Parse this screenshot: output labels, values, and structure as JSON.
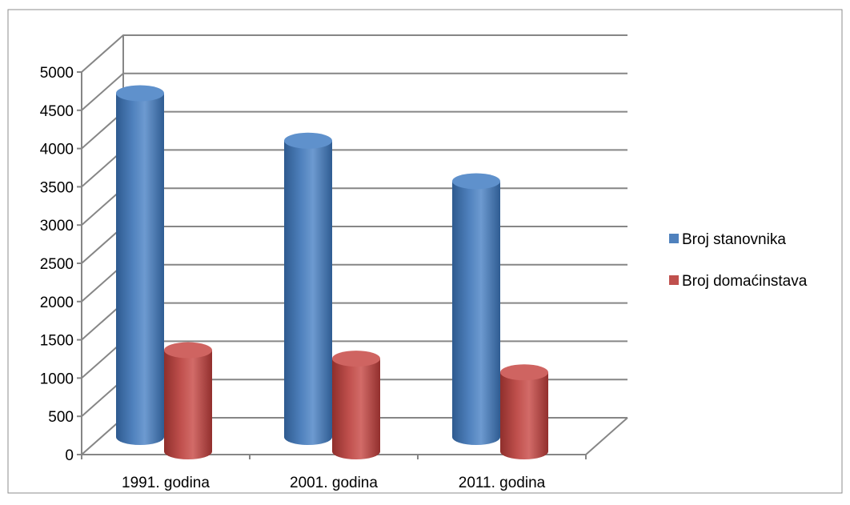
{
  "chart_data": {
    "type": "bar",
    "style": "3d-cylinder",
    "title": "",
    "xlabel": "",
    "ylabel": "",
    "categories": [
      "1991. godina",
      "2001. godina",
      "2011. godina"
    ],
    "series": [
      {
        "name": "Broj stanovnika",
        "values": [
          4660,
          4040,
          3510
        ],
        "color": "#4F81BD"
      },
      {
        "name": "Broj domaćinstava",
        "values": [
          1490,
          1380,
          1200
        ],
        "color": "#C0504D"
      }
    ],
    "ylim": [
      0,
      5000
    ],
    "yticks": [
      0,
      500,
      1000,
      1500,
      2000,
      2500,
      3000,
      3500,
      4000,
      4500,
      5000
    ],
    "grid": true,
    "legend_position": "right"
  }
}
